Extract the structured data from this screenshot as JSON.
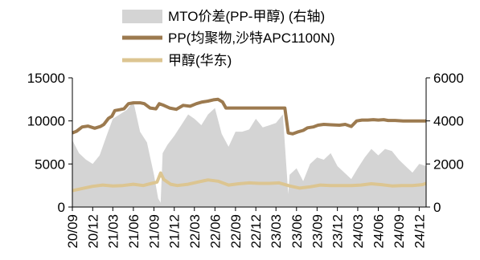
{
  "chart_data": {
    "type": "line",
    "legend": {
      "position": "top-center",
      "entries": [
        {
          "key": "mto",
          "label": "MTO价差(PP-甲醇) (右轴)"
        },
        {
          "key": "pp",
          "label": "PP(均聚物,沙特APC1100N)"
        },
        {
          "key": "meoh",
          "label": "甲醇(华东)"
        }
      ]
    },
    "x_tick_labels": [
      "20/09",
      "20/12",
      "21/03",
      "21/06",
      "21/09",
      "21/12",
      "22/03",
      "22/06",
      "22/09",
      "22/12",
      "23/03",
      "23/06",
      "23/09",
      "23/12",
      "24/03",
      "24/06",
      "24/09",
      "24/12"
    ],
    "x_range": [
      "2020-09",
      "2025-01"
    ],
    "y_left": {
      "ylim": [
        0,
        15000
      ],
      "ticks": [
        "0",
        "5000",
        "10000",
        "15000"
      ]
    },
    "y_right": {
      "ylim": [
        0,
        6000
      ],
      "ticks": [
        "0",
        "2000",
        "4000",
        "6000"
      ]
    },
    "grid": false,
    "series": [
      {
        "name": "PP(均聚物,沙特APC1100N)",
        "key": "pp",
        "axis": "left",
        "color": "#9c7a4f",
        "type": "line",
        "x": [
          "2020-09-01",
          "2020-09-20",
          "2020-10-15",
          "2020-11-10",
          "2020-12-10",
          "2021-01-05",
          "2021-01-20",
          "2021-02-10",
          "2021-02-25",
          "2021-03-10",
          "2021-04-01",
          "2021-04-20",
          "2021-05-10",
          "2021-06-01",
          "2021-07-01",
          "2021-07-20",
          "2021-08-15",
          "2021-09-10",
          "2021-09-25",
          "2021-10-15",
          "2021-11-10",
          "2021-12-10",
          "2022-01-10",
          "2022-02-10",
          "2022-03-10",
          "2022-04-05",
          "2022-05-01",
          "2022-05-25",
          "2022-06-15",
          "2022-07-05",
          "2022-07-20",
          "2022-08-15",
          "2022-09-20",
          "2022-11-01",
          "2022-12-15",
          "2023-02-01",
          "2023-03-01",
          "2023-04-10",
          "2023-04-25",
          "2023-05-15",
          "2023-06-05",
          "2023-07-01",
          "2023-07-20",
          "2023-08-15",
          "2023-09-05",
          "2023-10-01",
          "2023-11-01",
          "2023-12-10",
          "2024-01-05",
          "2024-02-01",
          "2024-02-25",
          "2024-03-20",
          "2024-04-15",
          "2024-05-10",
          "2024-06-01",
          "2024-06-25",
          "2024-07-15",
          "2024-08-15",
          "2024-09-20",
          "2024-10-20",
          "2024-11-20",
          "2024-12-20",
          "2025-01-01"
        ],
        "values": [
          8600,
          8800,
          9300,
          9400,
          9150,
          9350,
          9600,
          10300,
          10550,
          11200,
          11300,
          11400,
          12000,
          12100,
          12100,
          12000,
          11500,
          11400,
          12000,
          11800,
          11500,
          11350,
          11800,
          11700,
          12000,
          12200,
          12300,
          12450,
          12500,
          12200,
          11500,
          11500,
          11500,
          11500,
          11500,
          11500,
          11500,
          11500,
          8600,
          8500,
          8700,
          8900,
          9200,
          9300,
          9500,
          9600,
          9550,
          9500,
          9600,
          9350,
          10000,
          10100,
          10100,
          10150,
          10100,
          10150,
          10050,
          10050,
          10000,
          10000,
          10000,
          10000,
          10000
        ]
      },
      {
        "name": "甲醇(华东)",
        "key": "meoh",
        "axis": "left",
        "color": "#dcc591",
        "type": "line",
        "x": [
          "2020-09-01",
          "2020-10-15",
          "2020-12-01",
          "2021-01-15",
          "2021-03-01",
          "2021-04-15",
          "2021-06-01",
          "2021-07-15",
          "2021-08-15",
          "2021-09-15",
          "2021-10-01",
          "2021-10-15",
          "2021-11-15",
          "2021-12-15",
          "2022-02-01",
          "2022-03-15",
          "2022-05-01",
          "2022-06-15",
          "2022-08-01",
          "2022-09-15",
          "2022-11-01",
          "2022-12-15",
          "2023-02-01",
          "2023-03-15",
          "2023-05-01",
          "2023-06-15",
          "2023-08-01",
          "2023-09-15",
          "2023-11-01",
          "2023-12-15",
          "2024-02-01",
          "2024-03-15",
          "2024-05-01",
          "2024-06-15",
          "2024-08-01",
          "2024-09-15",
          "2024-11-01",
          "2024-12-15",
          "2025-01-01"
        ],
        "values": [
          1900,
          2150,
          2400,
          2550,
          2450,
          2500,
          2650,
          2500,
          2700,
          2900,
          3950,
          3200,
          2650,
          2500,
          2650,
          2900,
          3150,
          3000,
          2550,
          2700,
          2800,
          2750,
          2750,
          2800,
          2450,
          2200,
          2350,
          2550,
          2500,
          2500,
          2500,
          2550,
          2700,
          2600,
          2450,
          2500,
          2500,
          2600,
          2750
        ]
      },
      {
        "name": "MTO价差(PP-甲醇) (右轴)",
        "key": "mto",
        "axis": "right",
        "color": "#d4d4d4",
        "type": "area",
        "x": [
          "2020-09-01",
          "2020-10-01",
          "2020-11-01",
          "2020-12-01",
          "2021-01-01",
          "2021-02-01",
          "2021-03-01",
          "2021-04-01",
          "2021-05-01",
          "2021-06-01",
          "2021-07-01",
          "2021-08-01",
          "2021-09-01",
          "2021-09-20",
          "2021-10-01",
          "2021-10-10",
          "2021-11-01",
          "2021-12-01",
          "2022-01-01",
          "2022-02-01",
          "2022-03-01",
          "2022-04-01",
          "2022-05-01",
          "2022-06-01",
          "2022-07-01",
          "2022-08-01",
          "2022-09-01",
          "2022-10-01",
          "2022-11-01",
          "2022-12-01",
          "2023-01-01",
          "2023-02-01",
          "2023-03-01",
          "2023-04-01",
          "2023-04-25",
          "2023-05-01",
          "2023-06-01",
          "2023-07-01",
          "2023-08-01",
          "2023-09-01",
          "2023-10-01",
          "2023-11-01",
          "2023-12-01",
          "2024-01-01",
          "2024-02-01",
          "2024-03-01",
          "2024-04-01",
          "2024-05-01",
          "2024-06-01",
          "2024-07-01",
          "2024-08-01",
          "2024-09-01",
          "2024-10-01",
          "2024-11-01",
          "2024-12-01",
          "2025-01-01"
        ],
        "values": [
          3100,
          2500,
          2200,
          2000,
          2400,
          3300,
          4100,
          4300,
          4500,
          4900,
          3500,
          3000,
          1500,
          400,
          200,
          2500,
          2900,
          3300,
          3800,
          4300,
          4100,
          3800,
          4300,
          4600,
          3400,
          2800,
          3500,
          3500,
          3600,
          4100,
          3700,
          3800,
          3900,
          4300,
          600,
          1500,
          1800,
          1200,
          2000,
          2300,
          2200,
          2500,
          1900,
          1600,
          1300,
          1800,
          2300,
          2700,
          2400,
          2700,
          2600,
          2200,
          1900,
          1600,
          2000,
          1900
        ]
      }
    ]
  }
}
